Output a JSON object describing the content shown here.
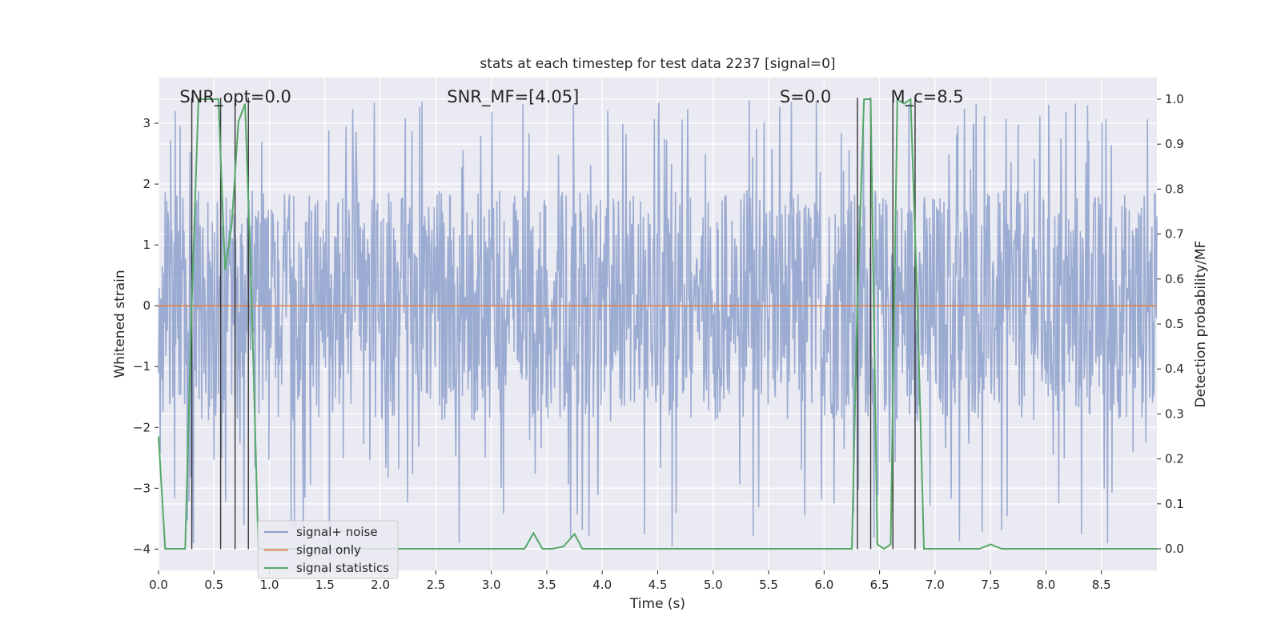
{
  "chart_data": {
    "type": "line",
    "title": "stats at each timestep for test data 2237 [signal=0]",
    "xlabel": "Time (s)",
    "ylabel": "Whitened strain",
    "y2label": "Detection probability/MF",
    "xlim": [
      0,
      9.0
    ],
    "ylim": [
      -4.35,
      3.75
    ],
    "y2lim": [
      -0.048,
      1.048
    ],
    "xticks": [
      0.0,
      0.5,
      1.0,
      1.5,
      2.0,
      2.5,
      3.0,
      3.5,
      4.0,
      4.5,
      5.0,
      5.5,
      6.0,
      6.5,
      7.0,
      7.5,
      8.0,
      8.5
    ],
    "xtick_labels": [
      "0.0",
      "0.5",
      "1.0",
      "1.5",
      "2.0",
      "2.5",
      "3.0",
      "3.5",
      "4.0",
      "4.5",
      "5.0",
      "5.5",
      "6.0",
      "6.5",
      "7.0",
      "7.5",
      "8.0",
      "8.5"
    ],
    "yticks": [
      -4,
      -3,
      -2,
      -1,
      0,
      1,
      2,
      3
    ],
    "ytick_labels": [
      "−4",
      "−3",
      "−2",
      "−1",
      "0",
      "1",
      "2",
      "3"
    ],
    "y2ticks": [
      0.0,
      0.1,
      0.2,
      0.3,
      0.4,
      0.5,
      0.6,
      0.7,
      0.8,
      0.9,
      1.0
    ],
    "y2tick_labels": [
      "0.0",
      "0.1",
      "0.2",
      "0.3",
      "0.4",
      "0.5",
      "0.6",
      "0.7",
      "0.8",
      "0.9",
      "1.0"
    ],
    "grid": true,
    "legend_position": "lower-left",
    "annotations": [
      {
        "text": "SNR_opt=0.0",
        "x": 0.19,
        "y": 3.45
      },
      {
        "text": "SNR_MF=[4.05]",
        "x": 2.6,
        "y": 3.45
      },
      {
        "text": "S=0.0",
        "x": 5.6,
        "y": 3.45
      },
      {
        "text": "M_c=8.5",
        "x": 6.6,
        "y": 3.45
      }
    ],
    "series": [
      {
        "name": "signal+ noise",
        "color": "#8da0cb",
        "description": "whitened noise time series, roughly uniform noise between about -1.9 and 1.9 with spikes up to 3.4 and down to -4",
        "noise_envelope": [
          -1.9,
          1.9
        ],
        "x_range": [
          0.0,
          9.0
        ]
      },
      {
        "name": "signal only",
        "color": "#dd8452",
        "x": [
          0.0,
          9.0
        ],
        "y": [
          0.0,
          0.0
        ]
      },
      {
        "name": "signal statistics",
        "color": "#55a868",
        "axis": "right",
        "x": [
          0.0,
          0.06,
          0.12,
          0.18,
          0.24,
          0.3,
          0.36,
          0.42,
          0.48,
          0.54,
          0.6,
          0.66,
          0.72,
          0.78,
          0.84,
          0.9,
          0.96,
          1.02,
          1.5,
          2.0,
          2.5,
          3.0,
          3.1,
          3.2,
          3.3,
          3.38,
          3.46,
          3.55,
          3.65,
          3.75,
          3.82,
          3.9,
          4.5,
          5.0,
          5.5,
          6.0,
          6.25,
          6.3,
          6.36,
          6.42,
          6.48,
          6.54,
          6.6,
          6.66,
          6.72,
          6.78,
          6.84,
          6.9,
          6.96,
          7.0,
          7.4,
          7.5,
          7.6,
          8.0,
          8.5,
          9.0
        ],
        "y": [
          0.25,
          0.0,
          0.0,
          0.0,
          0.0,
          0.55,
          1.0,
          1.0,
          1.0,
          1.0,
          0.62,
          0.72,
          0.95,
          0.99,
          0.55,
          0.0,
          0.0,
          0.0,
          0.0,
          0.0,
          0.0,
          0.0,
          0.0,
          0.0,
          0.0,
          0.035,
          0.0,
          0.0,
          0.005,
          0.033,
          0.0,
          0.0,
          0.0,
          0.0,
          0.0,
          0.0,
          0.0,
          0.55,
          1.0,
          1.0,
          0.01,
          0.0,
          0.01,
          1.0,
          0.99,
          1.0,
          0.55,
          0.0,
          0.0,
          0.0,
          0.0,
          0.01,
          0.0,
          0.0,
          0.0,
          0.0
        ]
      }
    ],
    "vertical_lines": {
      "color": "#333333",
      "x": [
        0.3,
        0.56,
        0.69,
        0.81,
        6.3,
        6.42,
        6.62,
        6.82
      ],
      "y_from": -4.0,
      "y_to": 3.42
    }
  }
}
